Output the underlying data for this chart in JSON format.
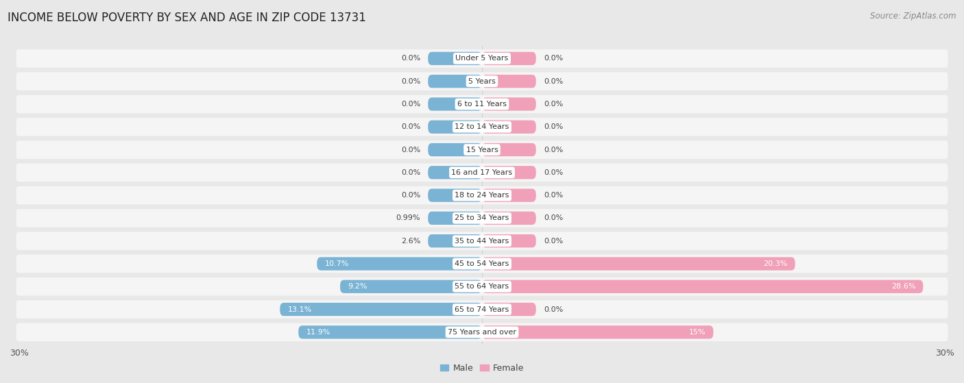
{
  "title": "INCOME BELOW POVERTY BY SEX AND AGE IN ZIP CODE 13731",
  "source": "Source: ZipAtlas.com",
  "categories": [
    "Under 5 Years",
    "5 Years",
    "6 to 11 Years",
    "12 to 14 Years",
    "15 Years",
    "16 and 17 Years",
    "18 to 24 Years",
    "25 to 34 Years",
    "35 to 44 Years",
    "45 to 54 Years",
    "55 to 64 Years",
    "65 to 74 Years",
    "75 Years and over"
  ],
  "male_values": [
    0.0,
    0.0,
    0.0,
    0.0,
    0.0,
    0.0,
    0.0,
    0.99,
    2.6,
    10.7,
    9.2,
    13.1,
    11.9
  ],
  "female_values": [
    0.0,
    0.0,
    0.0,
    0.0,
    0.0,
    0.0,
    0.0,
    0.0,
    0.0,
    20.3,
    28.6,
    0.0,
    15.0
  ],
  "male_color": "#7ab3d4",
  "female_color": "#f0a0b8",
  "male_label": "Male",
  "female_label": "Female",
  "xlim": 30.0,
  "min_bar_width": 3.5,
  "background_color": "#e8e8e8",
  "row_bg_color": "#f5f5f5",
  "title_fontsize": 12,
  "source_fontsize": 8.5,
  "axis_label_fontsize": 9,
  "bar_label_fontsize": 8,
  "category_fontsize": 8,
  "legend_fontsize": 9
}
